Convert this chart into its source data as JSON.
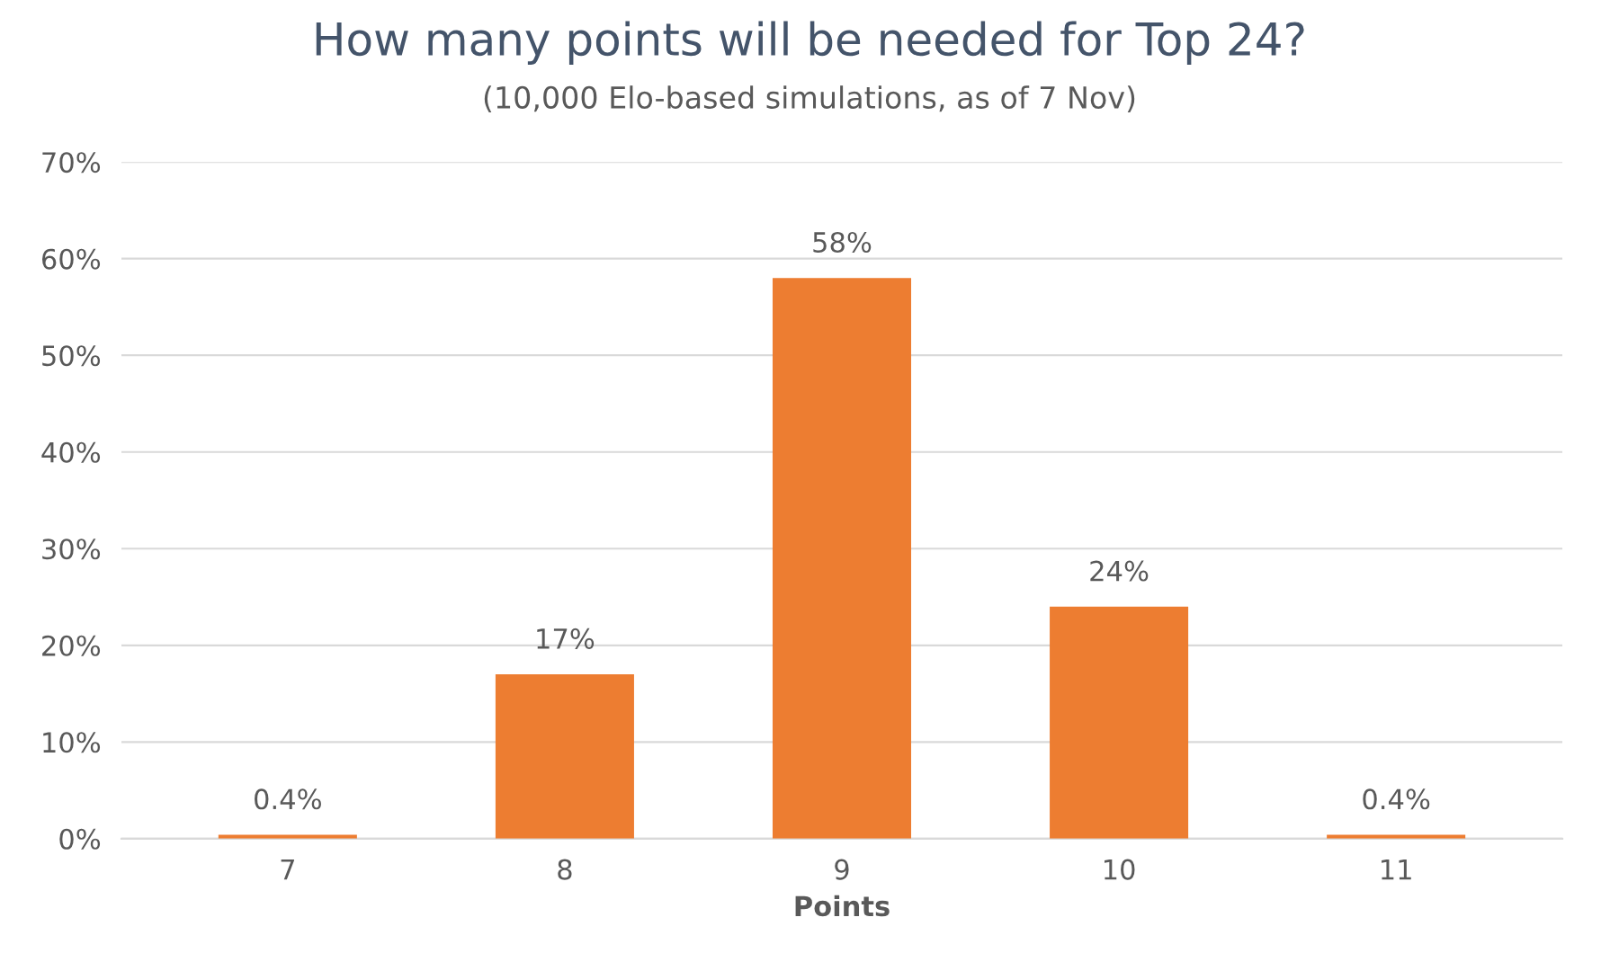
{
  "chart_data": {
    "type": "bar",
    "title": "How many points will be needed for Top 24?",
    "subtitle": "(10,000 Elo-based simulations, as of 7 Nov)",
    "xlabel": "Points",
    "categories": [
      "7",
      "8",
      "9",
      "10",
      "11"
    ],
    "values": [
      0.4,
      17,
      58,
      24,
      0.4
    ],
    "value_labels": [
      "0.4%",
      "17%",
      "58%",
      "24%",
      "0.4%"
    ],
    "color": "#ed7d31",
    "ylim": [
      0,
      70
    ],
    "yticks": [
      {
        "value": 0,
        "label": "0%"
      },
      {
        "value": 10,
        "label": "10%"
      },
      {
        "value": 20,
        "label": "20%"
      },
      {
        "value": 30,
        "label": "30%"
      },
      {
        "value": 40,
        "label": "40%"
      },
      {
        "value": 50,
        "label": "50%"
      },
      {
        "value": 60,
        "label": "60%"
      },
      {
        "value": 70,
        "label": "70%"
      }
    ],
    "grid": "y"
  }
}
